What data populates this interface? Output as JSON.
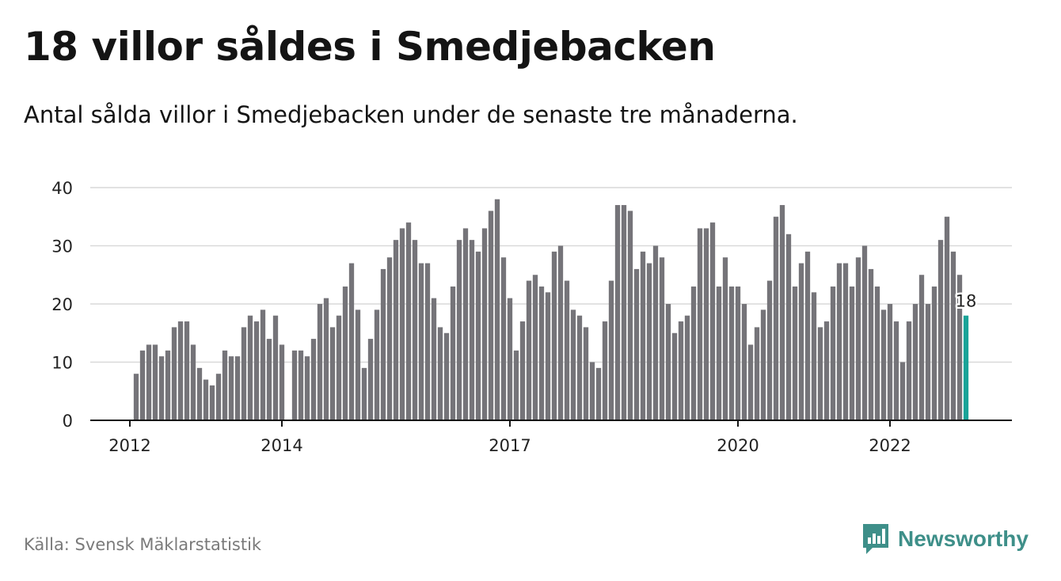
{
  "header": {
    "title": "18 villor såldes i Smedjebacken",
    "subtitle": "Antal sålda villor i Smedjebacken under de senaste tre månaderna."
  },
  "footer": {
    "source": "Källa: Svensk Mäklarstatistik",
    "brand": "Newsworthy",
    "brand_icon": "bar-chart-icon"
  },
  "colors": {
    "bar": "#757479",
    "highlight": "#1aa398",
    "grid": "#d9d9d9",
    "axis": "#141414",
    "brand": "#3e8f89"
  },
  "chart_data": {
    "type": "bar",
    "title": "18 villor såldes i Smedjebacken",
    "subtitle": "Antal sålda villor i Smedjebacken under de senaste tre månaderna.",
    "xlabel": "",
    "ylabel": "",
    "ylim": [
      0,
      40
    ],
    "yticks": [
      0,
      10,
      20,
      30,
      40
    ],
    "x_start": "2012-01",
    "x_end": "2022-12",
    "x_ticks": [
      {
        "label": "2012",
        "month": "2012-01"
      },
      {
        "label": "2014",
        "month": "2014-01"
      },
      {
        "label": "2017",
        "month": "2017-01"
      },
      {
        "label": "2020",
        "month": "2020-01"
      },
      {
        "label": "2022",
        "month": "2022-01"
      }
    ],
    "values": [
      null,
      8,
      12,
      13,
      13,
      11,
      12,
      16,
      17,
      17,
      13,
      9,
      7,
      6,
      8,
      12,
      11,
      11,
      16,
      18,
      17,
      19,
      14,
      18,
      13,
      null,
      12,
      12,
      11,
      14,
      20,
      21,
      16,
      18,
      23,
      27,
      19,
      9,
      14,
      19,
      26,
      28,
      31,
      33,
      34,
      31,
      27,
      27,
      21,
      16,
      15,
      23,
      31,
      33,
      31,
      29,
      33,
      36,
      38,
      28,
      21,
      12,
      17,
      24,
      25,
      23,
      22,
      29,
      30,
      24,
      19,
      18,
      16,
      10,
      9,
      17,
      24,
      37,
      37,
      36,
      26,
      29,
      27,
      30,
      28,
      20,
      15,
      17,
      18,
      23,
      33,
      33,
      34,
      23,
      28,
      23,
      23,
      20,
      13,
      16,
      19,
      24,
      35,
      37,
      32,
      23,
      27,
      29,
      22,
      16,
      17,
      23,
      27,
      27,
      23,
      28,
      30,
      26,
      23,
      19,
      20,
      17,
      10,
      17,
      20,
      25,
      20,
      23,
      31,
      35,
      29,
      25,
      18
    ],
    "highlight_label": "18",
    "grid": true,
    "legend": "none"
  }
}
